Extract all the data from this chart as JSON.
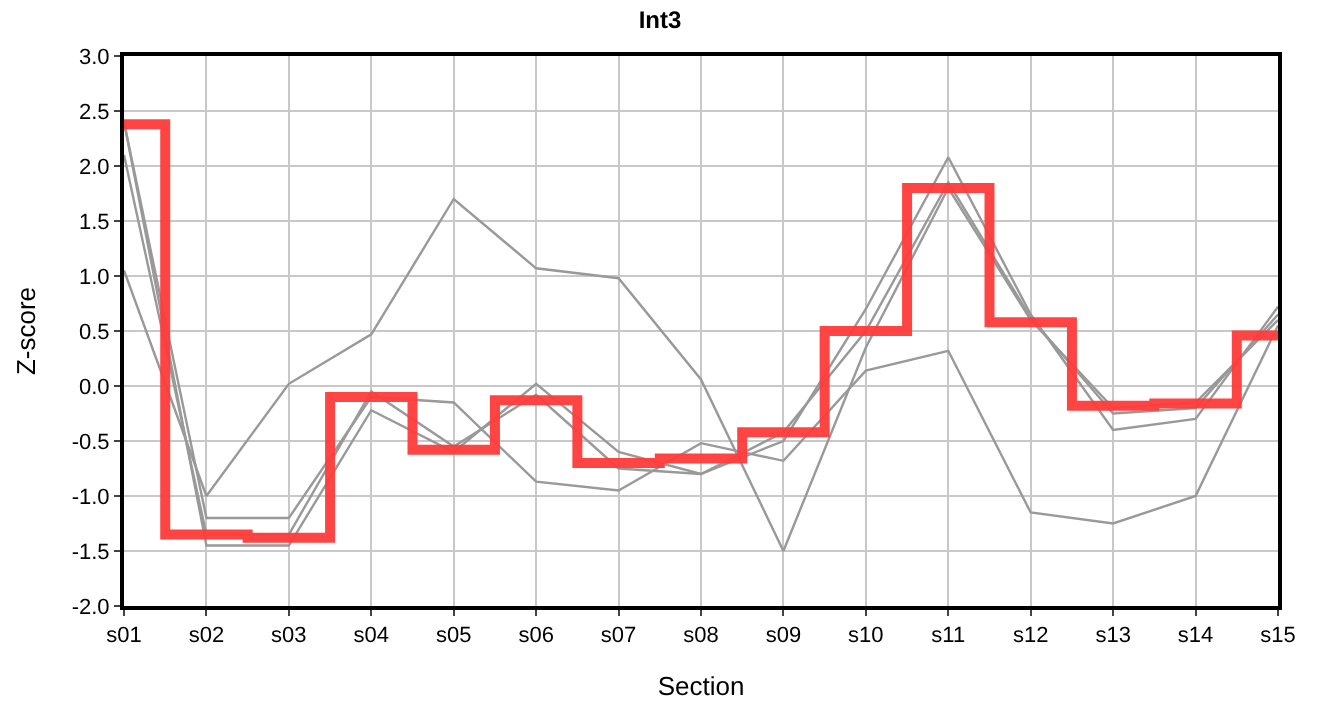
{
  "chart_data": {
    "type": "line",
    "title": "Int3",
    "xlabel": "Section",
    "ylabel": "Z-score",
    "categories": [
      "s01",
      "s02",
      "s03",
      "s04",
      "s05",
      "s06",
      "s07",
      "s08",
      "s09",
      "s10",
      "s11",
      "s12",
      "s13",
      "s14",
      "s15"
    ],
    "series": [
      {
        "color": "#999999",
        "values": [
          1.05,
          -1.0,
          0.02,
          0.47,
          1.7,
          1.07,
          0.98,
          0.06,
          -1.5,
          0.35,
          1.8,
          0.6,
          -0.2,
          -0.15,
          0.6
        ]
      },
      {
        "color": "#999999",
        "values": [
          2.4,
          -1.2,
          -1.2,
          -0.1,
          -0.15,
          -0.87,
          -0.95,
          -0.52,
          -0.68,
          0.14,
          0.32,
          -1.15,
          -1.25,
          -1.0,
          0.55
        ]
      },
      {
        "color": "#999999",
        "values": [
          2.4,
          -1.45,
          -1.45,
          -0.22,
          -0.6,
          0.02,
          -0.6,
          -0.8,
          -0.5,
          0.7,
          2.08,
          0.65,
          -0.4,
          -0.3,
          0.72
        ]
      },
      {
        "color": "#999999",
        "values": [
          2.1,
          -1.35,
          -1.35,
          -0.05,
          -0.55,
          -0.08,
          -0.75,
          -0.8,
          -0.42,
          0.5,
          1.85,
          0.62,
          -0.25,
          -0.2,
          0.65
        ]
      },
      {
        "type": "step",
        "color": "#ff3b3b",
        "values": [
          2.38,
          -1.35,
          -1.38,
          -0.1,
          -0.58,
          -0.13,
          -0.7,
          -0.66,
          -0.42,
          0.5,
          1.8,
          0.58,
          -0.18,
          -0.16,
          0.46
        ]
      }
    ],
    "ylim": [
      -2,
      3
    ],
    "yticks": [
      {
        "value": -2,
        "label": "-2.0"
      },
      {
        "value": -1.5,
        "label": "-1.5"
      },
      {
        "value": -1,
        "label": "-1.0"
      },
      {
        "value": -0.5,
        "label": "-0.5"
      },
      {
        "value": 0,
        "label": "0.0"
      },
      {
        "value": 0.5,
        "label": "0.5"
      },
      {
        "value": 1,
        "label": "1.0"
      },
      {
        "value": 1.5,
        "label": "1.5"
      },
      {
        "value": 2,
        "label": "2.0"
      },
      {
        "value": 2.5,
        "label": "2.5"
      },
      {
        "value": 3,
        "label": "3.0"
      }
    ],
    "grid": true,
    "marker": "none",
    "line_style": "solid"
  }
}
